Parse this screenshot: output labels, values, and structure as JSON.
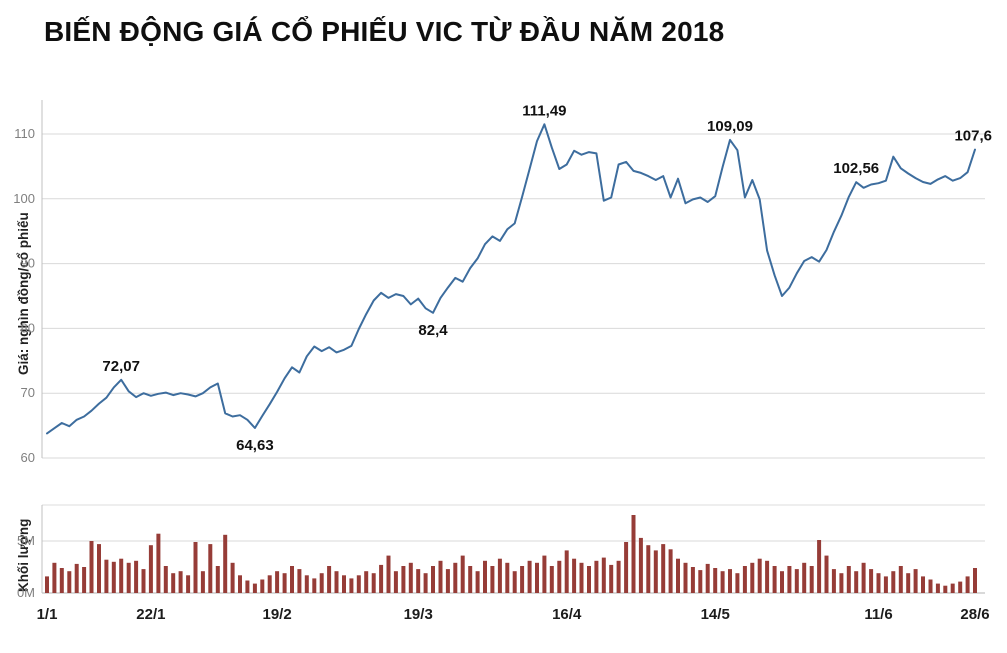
{
  "title": "BIẾN ĐỘNG GIÁ CỔ PHIẾU VIC TỪ ĐẦU NĂM 2018",
  "chart_data": [
    {
      "type": "line",
      "title": "BIẾN ĐỘNG GIÁ CỔ PHIẾU VIC TỪ ĐẦU NĂM 2018",
      "ylabel": "Giá: nghìn đồng/cổ phiếu",
      "line_color": "#3d6d9e",
      "grid": "horizontal",
      "y_ticks": [
        60,
        70,
        80,
        90,
        100,
        110
      ],
      "ylim": [
        58,
        114
      ],
      "x_tick_labels": [
        "1/1",
        "22/1",
        "19/2",
        "19/3",
        "16/4",
        "14/5",
        "11/6",
        "28/6"
      ],
      "x_tick_indices": [
        0,
        14,
        31,
        50,
        70,
        90,
        112,
        125
      ],
      "series": [
        {
          "name": "VIC",
          "values": [
            63.8,
            64.6,
            65.4,
            64.9,
            65.9,
            66.4,
            67.3,
            68.4,
            69.3,
            70.9,
            72.07,
            70.3,
            69.4,
            70.0,
            69.6,
            69.9,
            70.1,
            69.7,
            70.0,
            69.8,
            69.5,
            70.0,
            70.9,
            71.5,
            66.9,
            66.4,
            66.6,
            65.9,
            64.63,
            66.5,
            68.3,
            70.2,
            72.3,
            74.0,
            73.2,
            75.7,
            77.2,
            76.5,
            77.1,
            76.3,
            76.7,
            77.3,
            79.9,
            82.2,
            84.3,
            85.5,
            84.7,
            85.3,
            85.0,
            83.7,
            84.6,
            83.1,
            82.4,
            84.7,
            86.3,
            87.8,
            87.2,
            89.3,
            90.8,
            93.0,
            94.2,
            93.5,
            95.3,
            96.2,
            100.3,
            104.6,
            108.9,
            111.49,
            107.9,
            104.6,
            105.3,
            107.4,
            106.8,
            107.2,
            107.0,
            99.7,
            100.2,
            105.3,
            105.7,
            104.3,
            104.0,
            103.5,
            102.9,
            103.5,
            100.2,
            103.1,
            99.3,
            99.9,
            100.2,
            99.5,
            100.4,
            104.9,
            109.09,
            107.5,
            100.2,
            102.9,
            99.9,
            92.0,
            88.2,
            85.0,
            86.3,
            88.5,
            90.4,
            91.0,
            90.3,
            92.1,
            94.9,
            97.4,
            100.3,
            102.56,
            101.7,
            102.2,
            102.4,
            102.8,
            106.5,
            104.7,
            103.9,
            103.2,
            102.6,
            102.3,
            103.0,
            103.5,
            102.8,
            103.2,
            104.1,
            107.6
          ]
        }
      ],
      "annotations": [
        {
          "index": 10,
          "label": "72,07",
          "placement": "above"
        },
        {
          "index": 28,
          "label": "64,63",
          "placement": "below"
        },
        {
          "index": 52,
          "label": "82,4",
          "placement": "below"
        },
        {
          "index": 67,
          "label": "111,49",
          "placement": "above"
        },
        {
          "index": 92,
          "label": "109,09",
          "placement": "above"
        },
        {
          "index": 109,
          "label": "102,56",
          "placement": "above"
        },
        {
          "index": 125,
          "label": "107,6",
          "placement": "above"
        }
      ]
    },
    {
      "type": "bar",
      "ylabel": "Khối lượng",
      "bar_color": "#963c37",
      "unit": "M",
      "y_ticks": [
        "0M",
        "5M"
      ],
      "y_tick_values": [
        0,
        5
      ],
      "ylim": [
        0,
        8
      ],
      "values": [
        1.6,
        2.9,
        2.4,
        2.1,
        2.8,
        2.5,
        5.0,
        4.7,
        3.2,
        3.0,
        3.3,
        2.9,
        3.1,
        2.3,
        4.6,
        5.7,
        2.6,
        1.9,
        2.1,
        1.7,
        4.9,
        2.1,
        4.7,
        2.6,
        5.6,
        2.9,
        1.7,
        1.2,
        0.9,
        1.3,
        1.7,
        2.1,
        1.9,
        2.6,
        2.3,
        1.7,
        1.4,
        1.9,
        2.6,
        2.1,
        1.7,
        1.4,
        1.7,
        2.1,
        1.9,
        2.7,
        3.6,
        2.1,
        2.6,
        2.9,
        2.3,
        1.9,
        2.6,
        3.1,
        2.3,
        2.9,
        3.6,
        2.6,
        2.1,
        3.1,
        2.6,
        3.3,
        2.9,
        2.1,
        2.6,
        3.1,
        2.9,
        3.6,
        2.6,
        3.1,
        4.1,
        3.3,
        2.9,
        2.6,
        3.1,
        3.4,
        2.7,
        3.1,
        4.9,
        7.5,
        5.3,
        4.6,
        4.1,
        4.7,
        4.2,
        3.3,
        2.9,
        2.5,
        2.2,
        2.8,
        2.4,
        2.1,
        2.3,
        1.9,
        2.6,
        2.9,
        3.3,
        3.1,
        2.6,
        2.1,
        2.6,
        2.3,
        2.9,
        2.6,
        5.1,
        3.6,
        2.3,
        1.9,
        2.6,
        2.1,
        2.9,
        2.3,
        1.9,
        1.6,
        2.1,
        2.6,
        1.9,
        2.3,
        1.6,
        1.3,
        0.9,
        0.7,
        0.9,
        1.1,
        1.6,
        2.4
      ]
    }
  ]
}
